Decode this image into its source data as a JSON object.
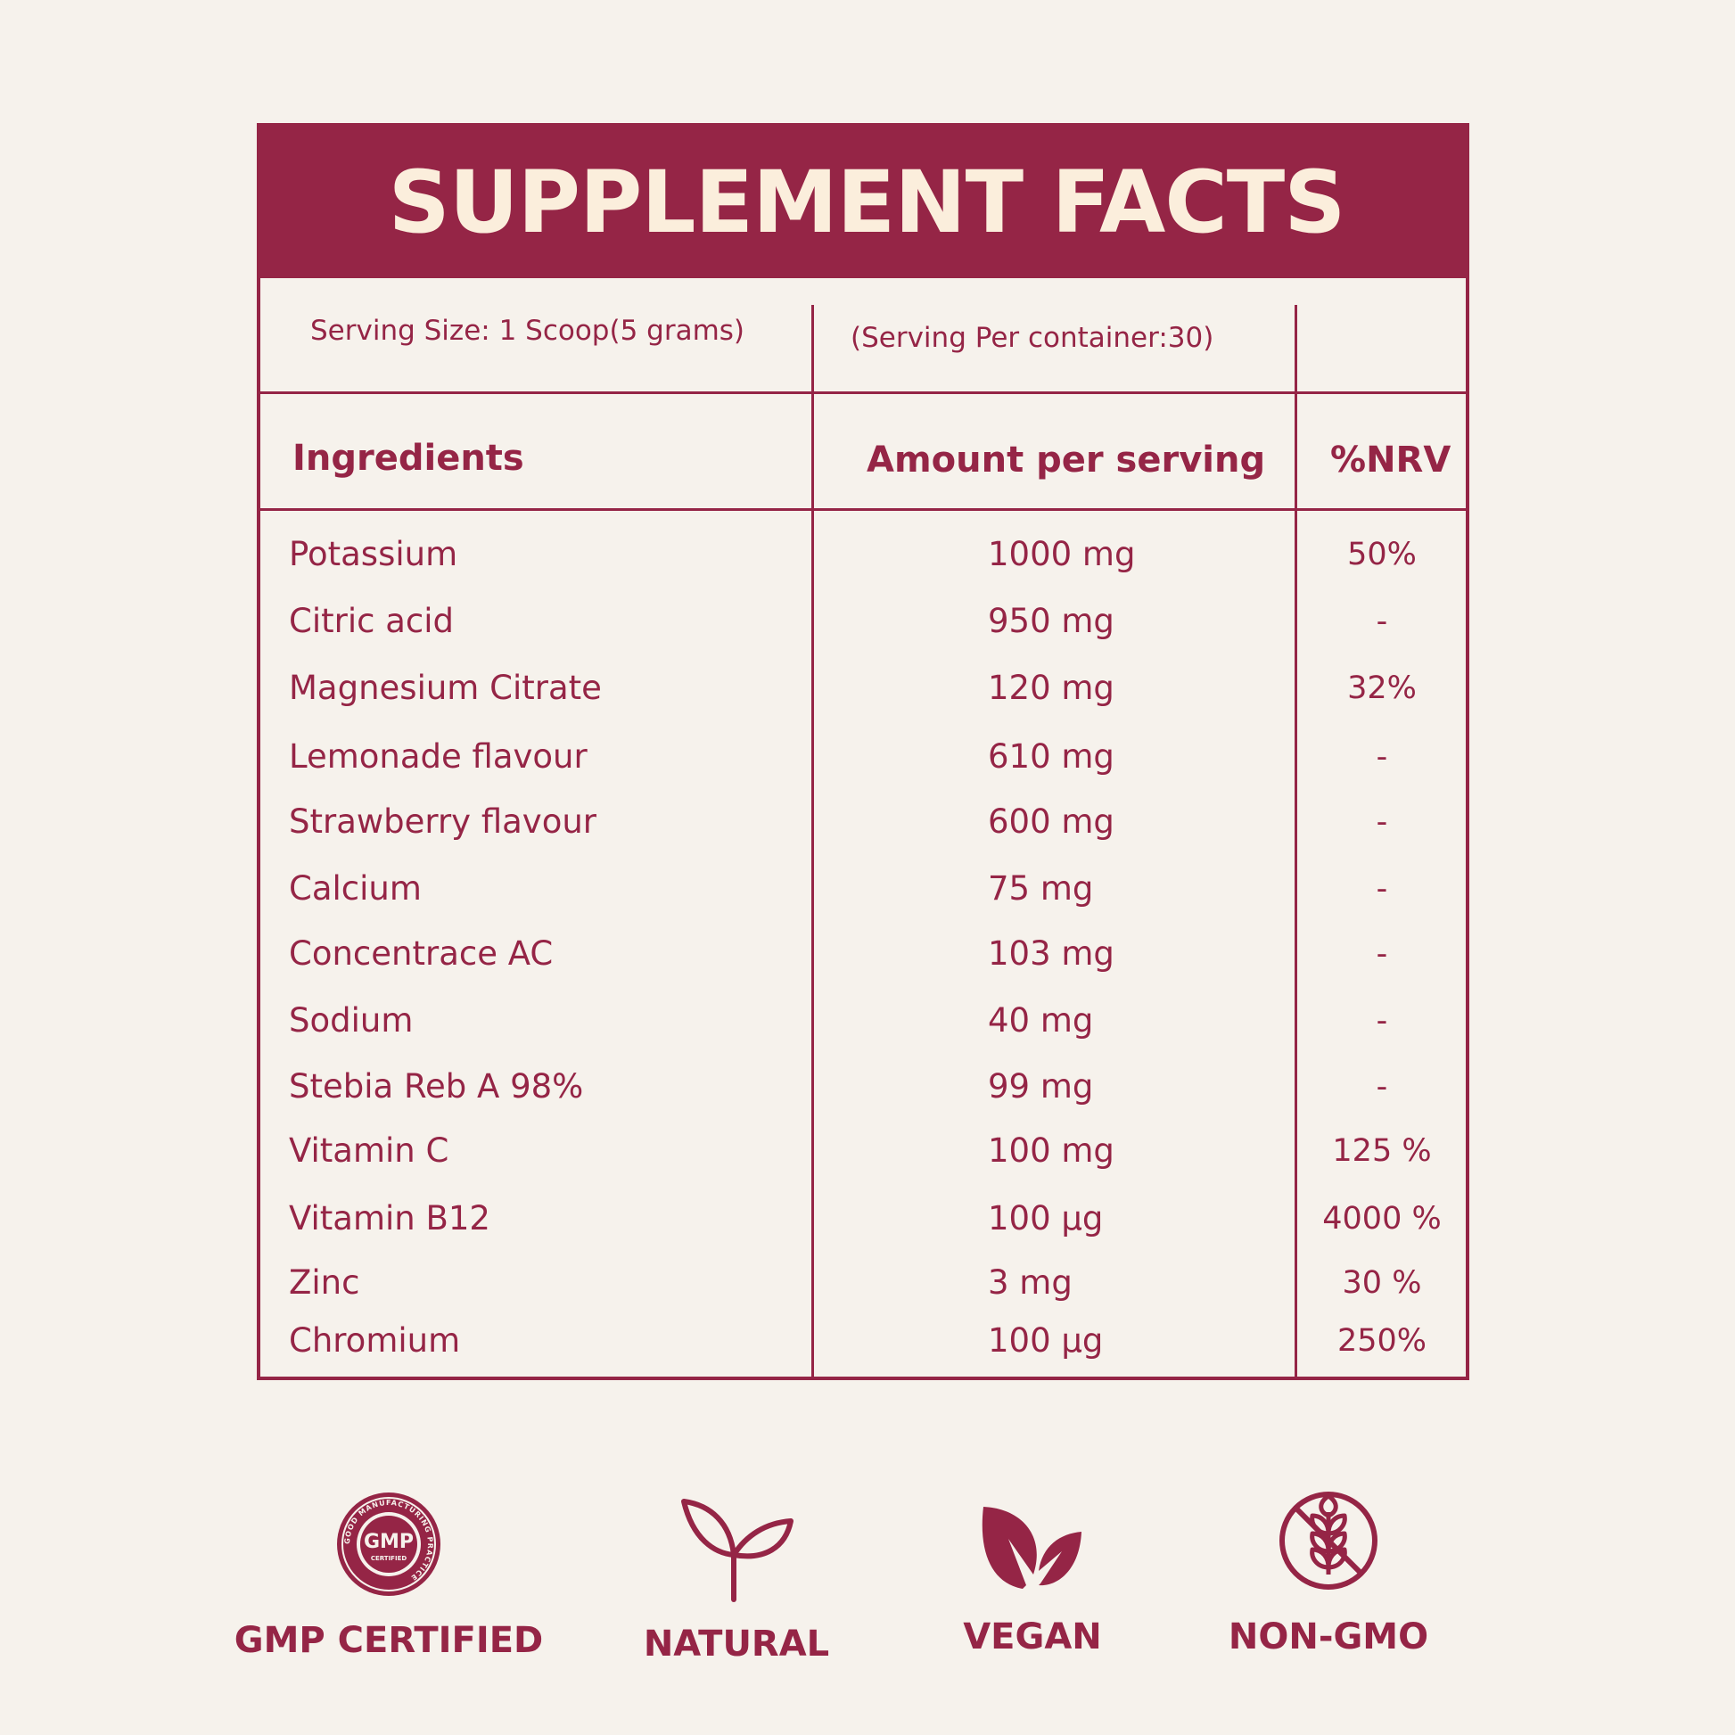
{
  "title": "SUPPLEMENT FACTS",
  "serving_size": "Serving Size: 1 Scoop(5 grams)",
  "servings_per_container": "(Serving Per container:30)",
  "columns": {
    "ingredients": "Ingredients",
    "amount": "Amount per serving",
    "nrv": "%NRV"
  },
  "rows": [
    {
      "name": "Potassium",
      "amount": "1000 mg",
      "nrv": "50%"
    },
    {
      "name": "Citric acid",
      "amount": "950 mg",
      "nrv": "-"
    },
    {
      "name": "Magnesium Citrate",
      "amount": "120 mg",
      "nrv": "32%"
    },
    {
      "name": "Lemonade flavour",
      "amount": "610 mg",
      "nrv": "-"
    },
    {
      "name": "Strawberry flavour",
      "amount": "600 mg",
      "nrv": "-"
    },
    {
      "name": "Calcium",
      "amount": "75 mg",
      "nrv": "-"
    },
    {
      "name": "Concentrace AC",
      "amount": "103 mg",
      "nrv": "-"
    },
    {
      "name": "Sodium",
      "amount": "40 mg",
      "nrv": "-"
    },
    {
      "name": "Stebia Reb A 98%",
      "amount": "99 mg",
      "nrv": "-"
    },
    {
      "name": "Vitamin C",
      "amount": "100 mg",
      "nrv": "125 %"
    },
    {
      "name": "Vitamin B12",
      "amount": "100 µg",
      "nrv": "4000 %"
    },
    {
      "name": "Zinc",
      "amount": "3 mg",
      "nrv": "30 %"
    },
    {
      "name": "Chromium",
      "amount": "100 µg",
      "nrv": "250%"
    }
  ],
  "badges": [
    {
      "label": "GMP CERTIFIED",
      "icon": "gmp-seal-icon",
      "seal_text": "GMP",
      "seal_sub": "CERTIFIED",
      "seal_ring": "GOOD MANUFACTURING PRACTICE"
    },
    {
      "label": "NATURAL",
      "icon": "sprout-icon"
    },
    {
      "label": "VEGAN",
      "icon": "leaves-icon"
    },
    {
      "label": "NON-GMO",
      "icon": "no-wheat-icon"
    }
  ],
  "colors": {
    "accent": "#952546",
    "background": "#f6f2ec",
    "header_text": "#fbeedc"
  }
}
